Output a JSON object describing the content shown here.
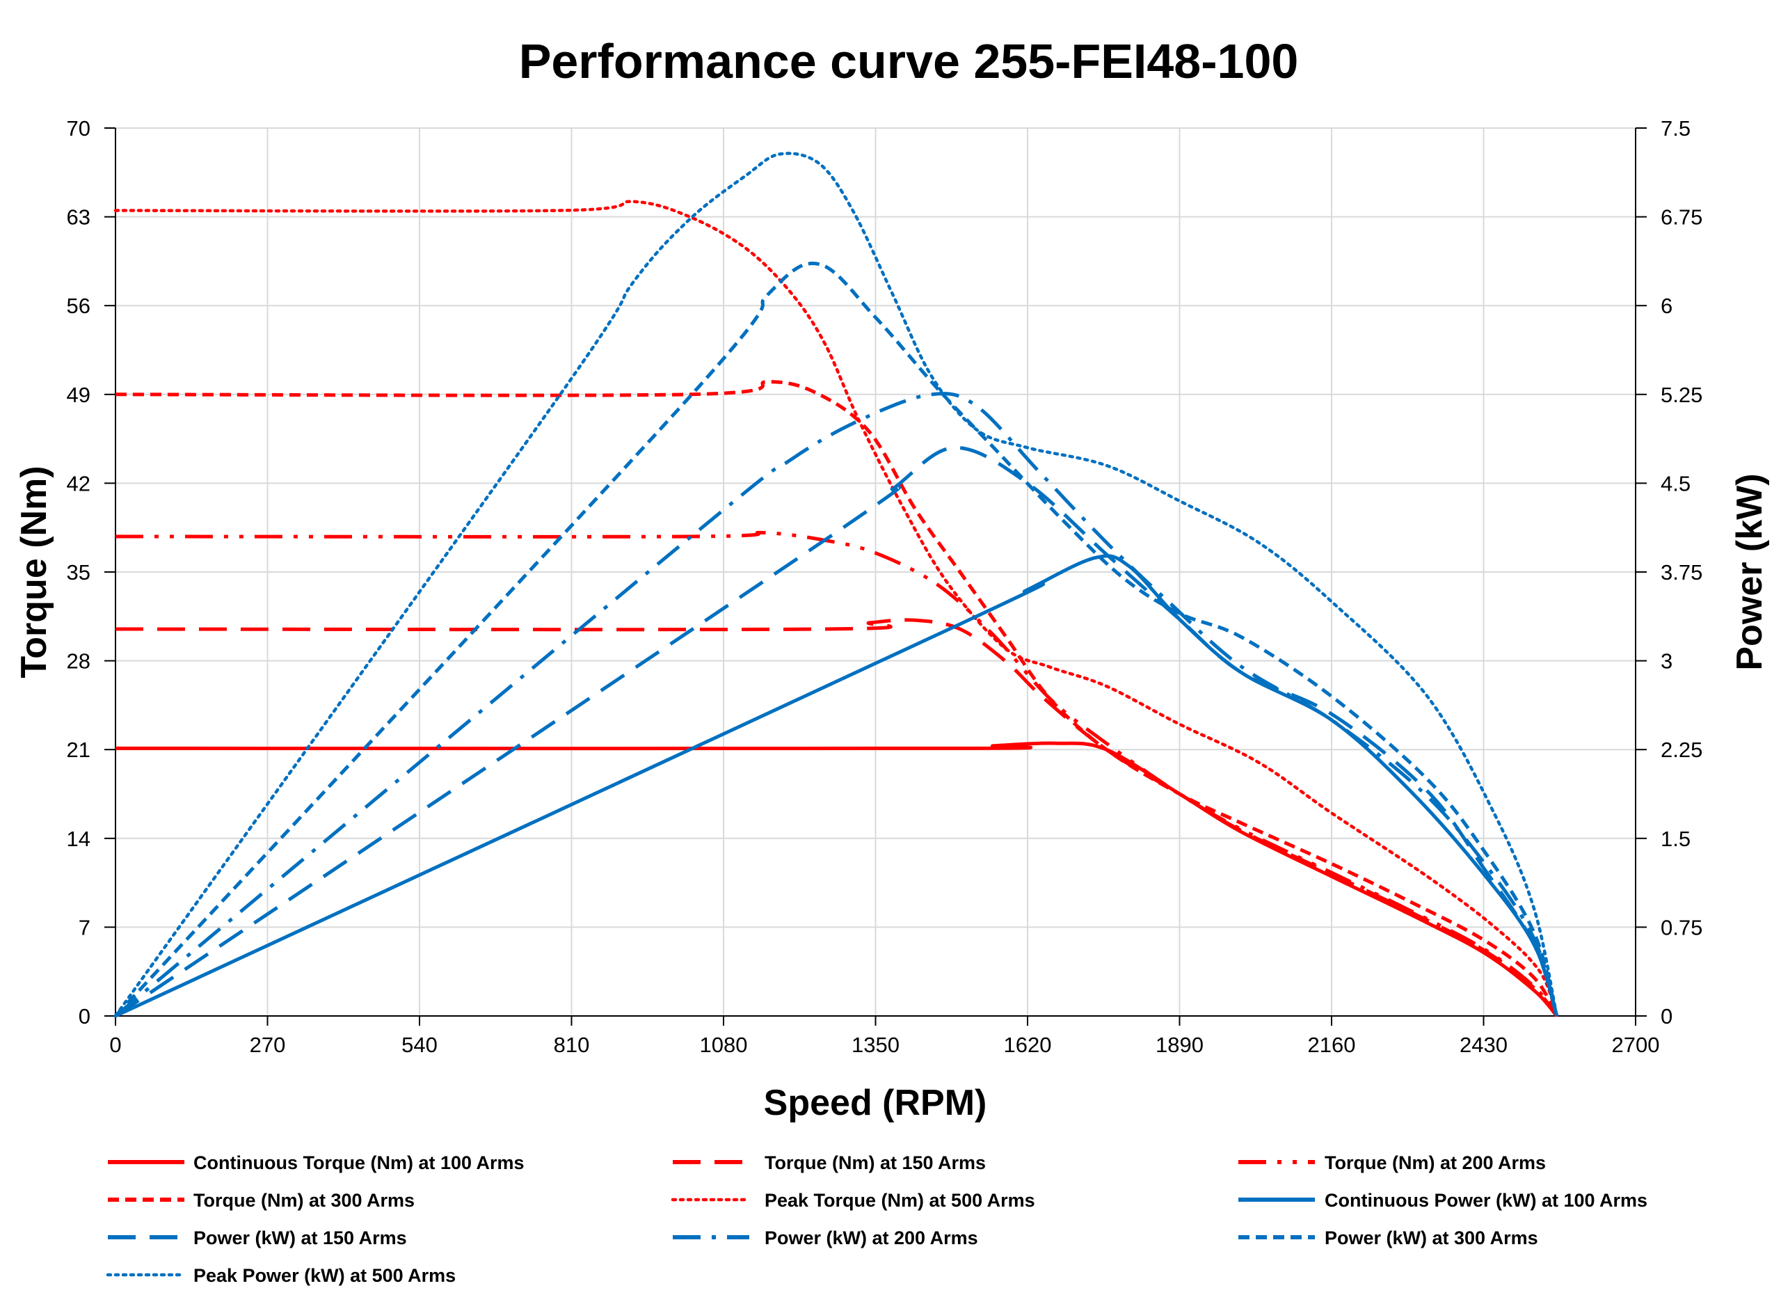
{
  "chart_data": {
    "type": "line",
    "title": "Performance curve 255-FEI48-100",
    "xlabel": "Speed (RPM)",
    "ylabel": "Torque (Nm)",
    "y2label": "Power (kW)",
    "xlim": [
      0,
      2700
    ],
    "ylim": [
      0,
      70
    ],
    "y2lim": [
      0,
      7.5
    ],
    "x_ticks": [
      "0",
      "270",
      "540",
      "810",
      "1080",
      "1350",
      "1620",
      "1890",
      "2160",
      "2430",
      "2700"
    ],
    "y_ticks": [
      "0",
      "7",
      "14",
      "21",
      "28",
      "35",
      "42",
      "49",
      "56",
      "63",
      "70"
    ],
    "y2_ticks": [
      "0",
      "0.75",
      "1.5",
      "2.25",
      "3",
      "3.75",
      "4.5",
      "5.25",
      "6",
      "6.75",
      "7.5"
    ],
    "grid": true,
    "legend_position": "bottom",
    "colors": {
      "torque": "#FF0000",
      "power": "#0070C0"
    },
    "series": [
      {
        "name": "Continuous Torque (Nm) at 100 Arms",
        "axis": "left",
        "color": "#FF0000",
        "style": "solid",
        "x": [
          0,
          1500,
          1560,
          1670,
          1760,
          1890,
          2000,
          2160,
          2300,
          2430,
          2520,
          2560
        ],
        "y": [
          21.1,
          21.1,
          21.3,
          21.5,
          21.0,
          17.5,
          14.5,
          11.0,
          8.0,
          5.0,
          2.0,
          0
        ]
      },
      {
        "name": "Torque (Nm) at 150 Arms",
        "axis": "left",
        "color": "#FF0000",
        "style": "long-dash",
        "x": [
          0,
          1260,
          1340,
          1420,
          1500,
          1580,
          1650,
          1760,
          1890,
          2000,
          2160,
          2300,
          2430,
          2520,
          2560
        ],
        "y": [
          30.5,
          30.5,
          31.0,
          31.2,
          30.5,
          28.0,
          25.0,
          21.0,
          17.5,
          14.6,
          11.2,
          8.2,
          5.2,
          2.2,
          0
        ]
      },
      {
        "name": "Torque (Nm) at 200 Arms",
        "axis": "left",
        "color": "#FF0000",
        "style": "dash-dot-dot",
        "x": [
          0,
          1020,
          1150,
          1260,
          1350,
          1460,
          1560,
          1660,
          1760,
          1890,
          2000,
          2160,
          2300,
          2430,
          2520,
          2560
        ],
        "y": [
          37.8,
          37.8,
          38.1,
          37.5,
          36.5,
          34.0,
          30.0,
          25.0,
          21.5,
          17.5,
          14.7,
          11.3,
          8.3,
          5.3,
          2.3,
          0
        ]
      },
      {
        "name": "Torque (Nm) at 300 Arms",
        "axis": "left",
        "color": "#FF0000",
        "style": "short-dash",
        "x": [
          0,
          1020,
          1160,
          1250,
          1340,
          1420,
          1500,
          1580,
          1660,
          1760,
          1890,
          2000,
          2160,
          2300,
          2430,
          2520,
          2560
        ],
        "y": [
          49.0,
          49.0,
          50.0,
          49.0,
          46.0,
          40.0,
          35.0,
          30.0,
          25.0,
          21.0,
          17.5,
          15.2,
          12.0,
          9.0,
          6.0,
          3.0,
          0
        ]
      },
      {
        "name": "Peak Torque (Nm) at 500 Arms",
        "axis": "left",
        "color": "#FF0000",
        "style": "dotted",
        "x": [
          0,
          790,
          920,
          1020,
          1120,
          1200,
          1260,
          1320,
          1400,
          1480,
          1580,
          1660,
          1760,
          1890,
          2030,
          2160,
          2330,
          2450,
          2530,
          2560
        ],
        "y": [
          63.5,
          63.5,
          64.2,
          63.0,
          60.5,
          57.0,
          53.0,
          47.0,
          40.0,
          34.0,
          29.0,
          27.5,
          26.0,
          23.0,
          20.0,
          16.0,
          11.0,
          7.0,
          3.5,
          0
        ]
      },
      {
        "name": "Continuous Power (kW) at 100 Arms",
        "axis": "right",
        "color": "#0070C0",
        "style": "solid",
        "x": [
          0,
          1500,
          1620,
          1740,
          1800,
          1890,
          2000,
          2160,
          2300,
          2430,
          2520,
          2560
        ],
        "y": [
          0,
          3.31,
          3.6,
          3.87,
          3.8,
          3.35,
          2.9,
          2.5,
          1.9,
          1.2,
          0.6,
          0
        ]
      },
      {
        "name": "Power (kW) at 150 Arms",
        "axis": "right",
        "color": "#0070C0",
        "style": "long-dash",
        "x": [
          0,
          1260,
          1380,
          1490,
          1620,
          1760,
          1890,
          2000,
          2160,
          2330,
          2430,
          2520,
          2560
        ],
        "y": [
          0,
          4.02,
          4.45,
          4.8,
          4.5,
          3.9,
          3.35,
          2.9,
          2.55,
          1.9,
          1.25,
          0.6,
          0
        ]
      },
      {
        "name": "Power (kW) at 200 Arms",
        "axis": "right",
        "color": "#0070C0",
        "style": "dash-dot",
        "x": [
          0,
          1020,
          1200,
          1330,
          1450,
          1530,
          1640,
          1760,
          1870,
          2000,
          2160,
          2320,
          2430,
          2520,
          2560
        ],
        "y": [
          0,
          4.04,
          4.7,
          5.05,
          5.25,
          5.15,
          4.6,
          4.0,
          3.5,
          2.95,
          2.5,
          1.9,
          1.3,
          0.65,
          0
        ]
      },
      {
        "name": "Power (kW) at 300 Arms",
        "axis": "right",
        "color": "#0070C0",
        "style": "short-dash",
        "x": [
          0,
          1020,
          1160,
          1250,
          1350,
          1460,
          1560,
          1680,
          1790,
          1890,
          2000,
          2160,
          2330,
          2430,
          2520,
          2560
        ],
        "y": [
          0,
          5.23,
          6.1,
          6.35,
          5.9,
          5.3,
          4.8,
          4.2,
          3.7,
          3.4,
          3.2,
          2.7,
          2.0,
          1.4,
          0.7,
          0
        ]
      },
      {
        "name": "Peak Power (kW) at 500 Arms",
        "axis": "right",
        "color": "#0070C0",
        "style": "dotted",
        "x": [
          0,
          790,
          920,
          1020,
          1120,
          1180,
          1250,
          1310,
          1380,
          1450,
          1530,
          1620,
          1760,
          1890,
          2030,
          2160,
          2330,
          2450,
          2520,
          2560
        ],
        "y": [
          0,
          5.25,
          6.2,
          6.73,
          7.1,
          7.28,
          7.2,
          6.8,
          6.1,
          5.4,
          4.95,
          4.8,
          4.65,
          4.35,
          4.0,
          3.5,
          2.7,
          1.7,
          0.9,
          0
        ]
      }
    ]
  }
}
